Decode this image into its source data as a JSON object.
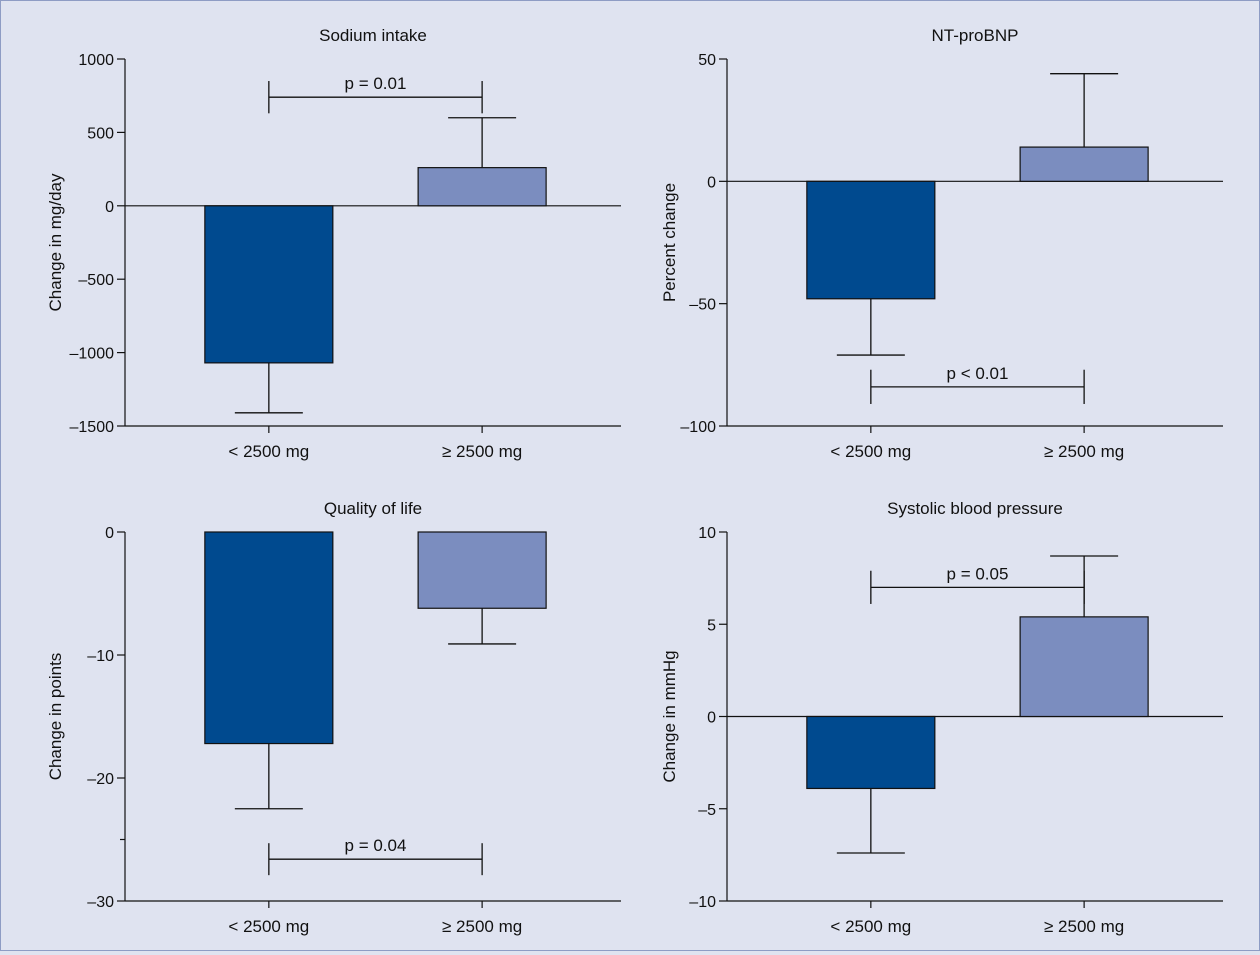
{
  "chart_data": [
    {
      "type": "bar",
      "title": "Sodium intake",
      "ylabel": "Change in mg/day",
      "xlabel": "",
      "categories": [
        "< 2500 mg",
        "≥ 2500 mg"
      ],
      "values": [
        -1070,
        260
      ],
      "error_values": [
        -1410,
        600
      ],
      "bar_colors": [
        "#004a8f",
        "#7b8dbf"
      ],
      "ylim": [
        -1500,
        1000
      ],
      "yticks": [
        -1500,
        -1000,
        -500,
        0,
        500,
        1000
      ],
      "ytick_labels": [
        "–1500",
        "–1000",
        "–500",
        "0",
        "500",
        "1000"
      ],
      "significance": {
        "label": "p = 0.01",
        "y": 740,
        "y_ends": 850,
        "direction": "top"
      }
    },
    {
      "type": "bar",
      "title": "NT-proBNP",
      "ylabel": "Percent change",
      "xlabel": "",
      "categories": [
        "< 2500 mg",
        "≥ 2500 mg"
      ],
      "values": [
        -48,
        14
      ],
      "error_values": [
        -71,
        44
      ],
      "bar_colors": [
        "#004a8f",
        "#7b8dbf"
      ],
      "ylim": [
        -100,
        50
      ],
      "yticks": [
        -100,
        -50,
        0,
        50
      ],
      "ytick_labels": [
        "–100",
        "–50",
        "0",
        "50"
      ],
      "significance": {
        "label": "p < 0.01",
        "y": -84,
        "y_ends": -91,
        "direction": "bottom"
      }
    },
    {
      "type": "bar",
      "title": "Quality of life",
      "ylabel": "Change in points",
      "xlabel": "",
      "categories": [
        "< 2500 mg",
        "≥ 2500 mg"
      ],
      "values": [
        -17.2,
        -6.2
      ],
      "error_values": [
        -22.5,
        -9.1
      ],
      "bar_colors": [
        "#004a8f",
        "#7b8dbf"
      ],
      "ylim": [
        -30,
        0
      ],
      "yticks": [
        -30,
        -20,
        -10,
        0
      ],
      "ytick_labels": [
        "–30",
        "–20",
        "–10",
        "0"
      ],
      "minor_ticks": [
        -25
      ],
      "significance": {
        "label": "p = 0.04",
        "y": -26.6,
        "y_ends": -27.9,
        "direction": "bottom"
      }
    },
    {
      "type": "bar",
      "title": "Systolic blood pressure",
      "ylabel": "Change in mmHg",
      "xlabel": "",
      "categories": [
        "< 2500 mg",
        "≥ 2500 mg"
      ],
      "values": [
        -3.9,
        5.4
      ],
      "error_values": [
        -7.4,
        8.7
      ],
      "bar_colors": [
        "#004a8f",
        "#7b8dbf"
      ],
      "ylim": [
        -10,
        10
      ],
      "yticks": [
        -10,
        -5,
        0,
        5,
        10
      ],
      "ytick_labels": [
        "–10",
        "–5",
        "0",
        "5",
        "10"
      ],
      "significance": {
        "label": "p = 0.05",
        "y": 7.0,
        "y_ends": 7.9,
        "direction": "top"
      }
    }
  ]
}
